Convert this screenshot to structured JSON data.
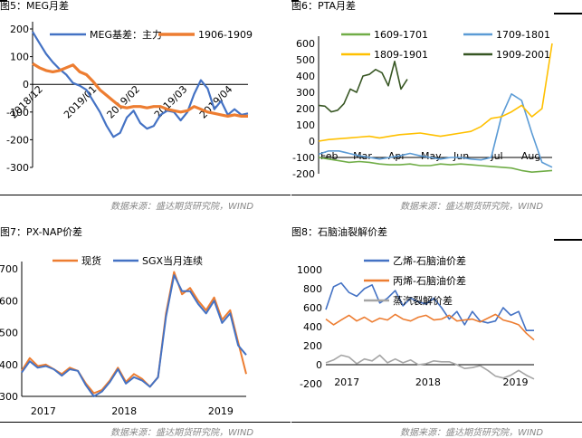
{
  "footer": {
    "source": "数据来源：盛达期货研究院，WIND"
  },
  "chart_data": [
    {
      "title": "图5：MEG月差",
      "type": "line",
      "ylim": [
        -300,
        200
      ],
      "yticks": [
        200,
        100,
        0,
        -100,
        -200,
        -300
      ],
      "xticklabels": [
        "2018/12",
        "2019/01",
        "2019/02",
        "2019/03",
        "2019/04"
      ],
      "legend_position": "top",
      "series": [
        {
          "name": "MEG基差：主力",
          "color": "#4472C4",
          "values": [
            190,
            150,
            110,
            80,
            55,
            35,
            5,
            -5,
            -20,
            -60,
            -100,
            -150,
            -190,
            -175,
            -120,
            -95,
            -140,
            -160,
            -150,
            -110,
            -95,
            -100,
            -130,
            -100,
            -35,
            15,
            -15,
            -90,
            -60,
            -110,
            -90,
            -110,
            -105
          ]
        },
        {
          "name": "1906-1909",
          "color": "#ED7D31",
          "values": [
            75,
            60,
            50,
            45,
            50,
            60,
            70,
            45,
            35,
            10,
            -20,
            -40,
            -60,
            -80,
            -85,
            -80,
            -80,
            -85,
            -80,
            -80,
            -90,
            -95,
            -100,
            -95,
            -80,
            -90,
            -100,
            -105,
            -110,
            -115,
            -110,
            -115,
            -115
          ]
        }
      ]
    },
    {
      "title": "图6：PTA月差",
      "type": "line",
      "ylim": [
        -200,
        600
      ],
      "yticks": [
        600,
        500,
        400,
        300,
        200,
        100,
        0,
        -100,
        -200
      ],
      "xticklabels": [
        "Feb",
        "Mar",
        "Apr",
        "May",
        "Jun",
        "Jul",
        "Aug"
      ],
      "legend_position": "top",
      "series": [
        {
          "name": "1609-1701",
          "color": "#70AD47",
          "values": [
            -100,
            -110,
            -120,
            -130,
            -125,
            -130,
            -140,
            -145,
            -145,
            -140,
            -150,
            -150,
            -140,
            -145,
            -140,
            -145,
            -150,
            -155,
            -160,
            -165,
            -180,
            -190,
            -185,
            -180
          ]
        },
        {
          "name": "1709-1801",
          "color": "#5B9BD5",
          "values": [
            -80,
            -60,
            -60,
            -75,
            -90,
            -100,
            -110,
            -100,
            -90,
            -75,
            -90,
            -100,
            -110,
            -100,
            -100,
            -110,
            -115,
            -100,
            150,
            290,
            250,
            50,
            -130,
            -160
          ]
        },
        {
          "name": "1809-1901",
          "color": "#FFC000",
          "values": [
            0,
            10,
            15,
            20,
            25,
            30,
            20,
            30,
            40,
            45,
            50,
            40,
            30,
            40,
            50,
            60,
            90,
            140,
            150,
            180,
            220,
            150,
            200,
            600
          ]
        },
        {
          "name": "1909-2001",
          "color": "#375623",
          "values": [
            220,
            215,
            180,
            190,
            230,
            320,
            300,
            400,
            410,
            440,
            420,
            340,
            490,
            320,
            380
          ]
        }
      ]
    },
    {
      "title": "图7：PX-NAP价差",
      "type": "line",
      "ylim": [
        300,
        700
      ],
      "yticks": [
        700,
        600,
        500,
        400,
        300
      ],
      "xticklabels": [
        "2017",
        "2018",
        "2019"
      ],
      "legend_position": "top",
      "series": [
        {
          "name": "现货",
          "color": "#ED7D31",
          "values": [
            380,
            420,
            395,
            400,
            385,
            370,
            390,
            380,
            340,
            310,
            320,
            350,
            390,
            345,
            370,
            355,
            330,
            360,
            560,
            690,
            620,
            640,
            600,
            570,
            610,
            540,
            570,
            470,
            370
          ]
        },
        {
          "name": "SGX当月连续",
          "color": "#4472C4",
          "values": [
            375,
            410,
            390,
            395,
            385,
            365,
            385,
            380,
            335,
            300,
            315,
            345,
            385,
            340,
            360,
            350,
            330,
            360,
            550,
            680,
            630,
            630,
            590,
            560,
            600,
            530,
            560,
            460,
            430
          ]
        }
      ]
    },
    {
      "title": "图8：石脑油裂解价差",
      "type": "line",
      "ylim": [
        -200,
        1000
      ],
      "yticks": [
        1000,
        800,
        600,
        400,
        200,
        0,
        -200
      ],
      "xticklabels": [
        "2017",
        "2018",
        "2019"
      ],
      "legend_position": "top",
      "series": [
        {
          "name": "乙烯-石脑油价差",
          "color": "#4472C4",
          "values": [
            580,
            820,
            860,
            760,
            720,
            800,
            840,
            650,
            700,
            780,
            620,
            700,
            660,
            640,
            700,
            600,
            480,
            560,
            420,
            560,
            460,
            440,
            460,
            600,
            520,
            560,
            360,
            360
          ]
        },
        {
          "name": "丙烯-石脑油价差",
          "color": "#ED7D31",
          "values": [
            480,
            420,
            470,
            520,
            460,
            500,
            450,
            490,
            470,
            530,
            480,
            460,
            500,
            520,
            470,
            480,
            520,
            460,
            470,
            480,
            450,
            490,
            530,
            470,
            450,
            420,
            330,
            260
          ]
        },
        {
          "name": "蒸汽裂解价差",
          "color": "#A5A5A5",
          "values": [
            20,
            50,
            100,
            80,
            10,
            60,
            40,
            100,
            20,
            60,
            20,
            50,
            0,
            10,
            40,
            30,
            30,
            0,
            -40,
            -30,
            -10,
            -60,
            -120,
            -140,
            -110,
            -60,
            -110,
            -150
          ]
        }
      ]
    }
  ]
}
